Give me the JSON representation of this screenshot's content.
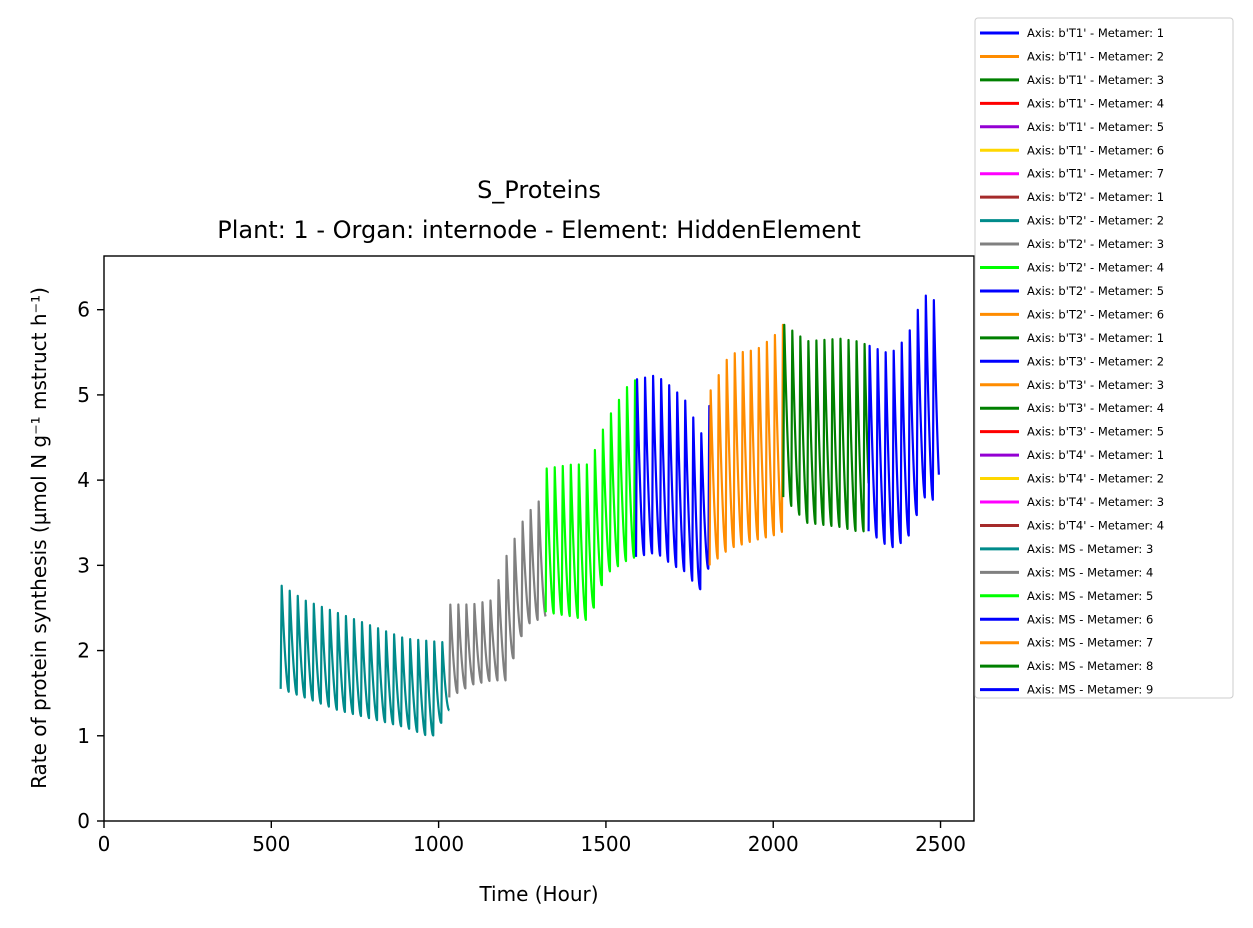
{
  "chart_data": {
    "type": "line",
    "title": "S_Proteins",
    "subtitle": "Plant: 1 - Organ: internode - Element: HiddenElement",
    "xlabel": "Time (Hour)",
    "ylabel": "Rate of protein synthesis (µmol N g⁻¹ mstruct h⁻¹)",
    "xlim": [
      0,
      2600
    ],
    "ylim": [
      0,
      6.63
    ],
    "xticks": [
      0,
      500,
      1000,
      1500,
      2000,
      2500
    ],
    "yticks": [
      0,
      1,
      2,
      3,
      4,
      5,
      6
    ],
    "grid": false,
    "legend_position": "outside-right",
    "oscillation_period_hours": 24,
    "series": [
      {
        "name": "Axis: b'T1' - Metamer: 1",
        "color": "#0000ff",
        "points": []
      },
      {
        "name": "Axis: b'T1' - Metamer: 2",
        "color": "#ff8c00",
        "points": []
      },
      {
        "name": "Axis: b'T1' - Metamer: 3",
        "color": "#008000",
        "points": []
      },
      {
        "name": "Axis: b'T1' - Metamer: 4",
        "color": "#ff0000",
        "points": []
      },
      {
        "name": "Axis: b'T1' - Metamer: 5",
        "color": "#9400d3",
        "points": []
      },
      {
        "name": "Axis: b'T1' - Metamer: 6",
        "color": "#ffd700",
        "points": []
      },
      {
        "name": "Axis: b'T1' - Metamer: 7",
        "color": "#ff00ff",
        "points": []
      },
      {
        "name": "Axis: b'T2' - Metamer: 1",
        "color": "#a52a2a",
        "points": []
      },
      {
        "name": "Axis: b'T2' - Metamer: 2",
        "color": "#008b8b",
        "points": []
      },
      {
        "name": "Axis: b'T2' - Metamer: 3",
        "color": "#808080",
        "points": []
      },
      {
        "name": "Axis: b'T2' - Metamer: 4",
        "color": "#00ff00",
        "points": []
      },
      {
        "name": "Axis: b'T2' - Metamer: 5",
        "color": "#0000ff",
        "points": []
      },
      {
        "name": "Axis: b'T2' - Metamer: 6",
        "color": "#ff8c00",
        "points": []
      },
      {
        "name": "Axis: b'T3' - Metamer: 1",
        "color": "#008000",
        "points": []
      },
      {
        "name": "Axis: b'T3' - Metamer: 2",
        "color": "#0000ff",
        "points": []
      },
      {
        "name": "Axis: b'T3' - Metamer: 3",
        "color": "#ff8c00",
        "points": []
      },
      {
        "name": "Axis: b'T3' - Metamer: 4",
        "color": "#008000",
        "points": []
      },
      {
        "name": "Axis: b'T3' - Metamer: 5",
        "color": "#ff0000",
        "points": []
      },
      {
        "name": "Axis: b'T4' - Metamer: 1",
        "color": "#9400d3",
        "points": []
      },
      {
        "name": "Axis: b'T4' - Metamer: 2",
        "color": "#ffd700",
        "points": []
      },
      {
        "name": "Axis: b'T4' - Metamer: 3",
        "color": "#ff00ff",
        "points": []
      },
      {
        "name": "Axis: b'T4' - Metamer: 4",
        "color": "#a52a2a",
        "points": []
      },
      {
        "name": "Axis: MS - Metamer: 3",
        "color": "#008b8b",
        "points": [
          [
            528,
            2.78
          ],
          [
            600,
            2.6
          ],
          [
            700,
            2.45
          ],
          [
            800,
            2.3
          ],
          [
            900,
            2.15
          ],
          [
            1032,
            2.1
          ]
        ],
        "trough": [
          [
            528,
            1.55
          ],
          [
            600,
            1.45
          ],
          [
            700,
            1.3
          ],
          [
            800,
            1.2
          ],
          [
            900,
            1.1
          ],
          [
            980,
            0.98
          ],
          [
            1032,
            1.3
          ]
        ]
      },
      {
        "name": "Axis: MS - Metamer: 4",
        "color": "#808080",
        "points": [
          [
            1032,
            2.55
          ],
          [
            1100,
            2.55
          ],
          [
            1160,
            2.6
          ],
          [
            1200,
            3.1
          ],
          [
            1260,
            3.6
          ],
          [
            1320,
            3.85
          ]
        ],
        "trough": [
          [
            1032,
            1.45
          ],
          [
            1100,
            1.6
          ],
          [
            1160,
            1.65
          ],
          [
            1200,
            1.65
          ],
          [
            1260,
            2.3
          ],
          [
            1320,
            2.4
          ]
        ]
      },
      {
        "name": "Axis: MS - Metamer: 5",
        "color": "#00ff00",
        "points": [
          [
            1320,
            4.15
          ],
          [
            1400,
            4.2
          ],
          [
            1450,
            4.2
          ],
          [
            1500,
            4.7
          ],
          [
            1560,
            5.1
          ],
          [
            1590,
            5.2
          ]
        ],
        "trough": [
          [
            1320,
            2.45
          ],
          [
            1400,
            2.4
          ],
          [
            1450,
            2.35
          ],
          [
            1500,
            2.9
          ],
          [
            1560,
            3.05
          ],
          [
            1590,
            3.1
          ]
        ]
      },
      {
        "name": "Axis: MS - Metamer: 6",
        "color": "#0000ff",
        "points": [
          [
            1590,
            5.2
          ],
          [
            1650,
            5.25
          ],
          [
            1700,
            5.1
          ],
          [
            1750,
            4.9
          ],
          [
            1780,
            4.5
          ],
          [
            1810,
            4.9
          ]
        ],
        "trough": [
          [
            1590,
            3.1
          ],
          [
            1650,
            3.15
          ],
          [
            1700,
            3.0
          ],
          [
            1750,
            2.9
          ],
          [
            1775,
            2.65
          ],
          [
            1810,
            3.0
          ]
        ]
      },
      {
        "name": "Axis: MS - Metamer: 7",
        "color": "#ff8c00",
        "points": [
          [
            1810,
            5.05
          ],
          [
            1870,
            5.5
          ],
          [
            1950,
            5.55
          ],
          [
            2000,
            5.7
          ],
          [
            2030,
            5.85
          ]
        ],
        "trough": [
          [
            1810,
            3.0
          ],
          [
            1870,
            3.2
          ],
          [
            1950,
            3.3
          ],
          [
            2000,
            3.35
          ],
          [
            2030,
            3.4
          ]
        ]
      },
      {
        "name": "Axis: MS - Metamer: 8",
        "color": "#008000",
        "points": [
          [
            2030,
            5.85
          ],
          [
            2100,
            5.65
          ],
          [
            2200,
            5.68
          ],
          [
            2250,
            5.65
          ],
          [
            2285,
            5.6
          ]
        ],
        "trough": [
          [
            2030,
            3.8
          ],
          [
            2100,
            3.5
          ],
          [
            2200,
            3.45
          ],
          [
            2250,
            3.4
          ],
          [
            2285,
            3.4
          ]
        ]
      },
      {
        "name": "Axis: MS - Metamer: 9",
        "color": "#0000ff",
        "points": [
          [
            2285,
            5.6
          ],
          [
            2350,
            5.5
          ],
          [
            2400,
            5.7
          ],
          [
            2450,
            6.2
          ],
          [
            2495,
            6.1
          ]
        ],
        "trough": [
          [
            2285,
            3.4
          ],
          [
            2350,
            3.2
          ],
          [
            2400,
            3.3
          ],
          [
            2450,
            3.8
          ],
          [
            2495,
            3.75
          ]
        ]
      }
    ]
  }
}
